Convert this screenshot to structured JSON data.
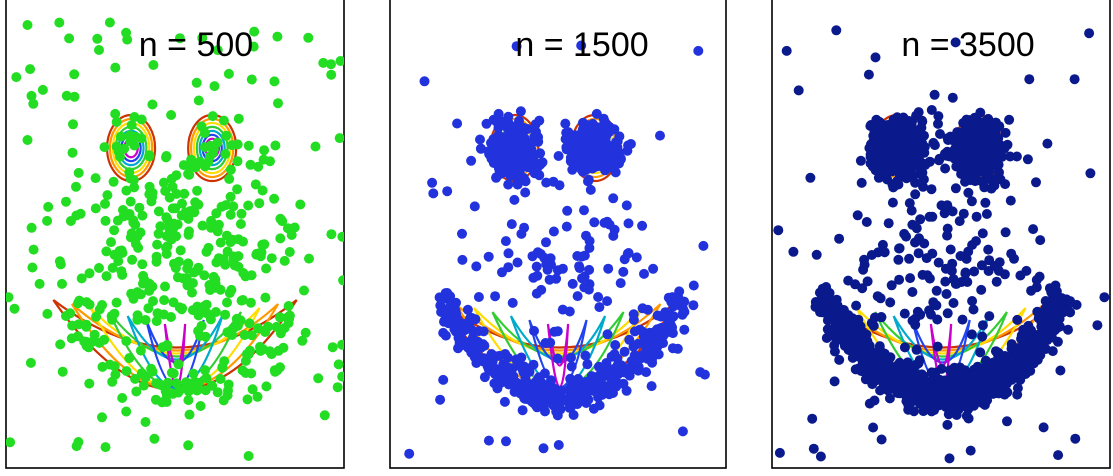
{
  "chart_data": [
    {
      "type": "scatter",
      "title": "n = 500",
      "n_points": 500,
      "point_color": "#22dd22",
      "contour_colors": [
        "#cc3300",
        "#ff9900",
        "#ffdd00",
        "#33cc33",
        "#00aacc",
        "#2244ee",
        "#cc00cc"
      ],
      "grid": false,
      "legend": "none"
    },
    {
      "type": "scatter",
      "title": "n = 1500",
      "n_points": 1500,
      "point_color": "#2233dd",
      "contour_colors": [
        "#cc3300",
        "#ff9900",
        "#ffdd00",
        "#33cc33",
        "#00aacc",
        "#2244ee",
        "#cc00cc"
      ],
      "grid": false,
      "legend": "none"
    },
    {
      "type": "scatter",
      "title": "n = 3500",
      "n_points": 3500,
      "point_color": "#0a1a8c",
      "contour_colors": [
        "#cc3300",
        "#ff9900",
        "#ffdd00",
        "#33cc33",
        "#00aacc",
        "#2244ee",
        "#cc00cc"
      ],
      "grid": false,
      "legend": "none"
    }
  ]
}
